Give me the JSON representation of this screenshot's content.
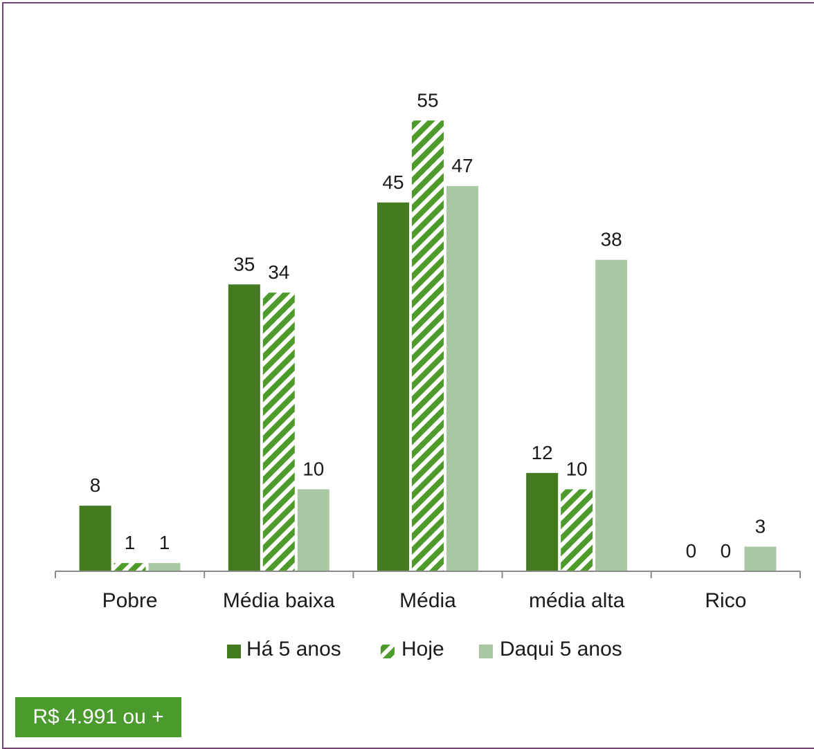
{
  "chart_data": {
    "type": "bar",
    "categories": [
      "Pobre",
      "Média baixa",
      "Média",
      "média alta",
      "Rico"
    ],
    "series": [
      {
        "name": "Há 5 anos",
        "values": [
          8,
          35,
          45,
          12,
          0
        ],
        "color": "#437a1f",
        "pattern": "solid"
      },
      {
        "name": "Hoje",
        "values": [
          1,
          34,
          55,
          10,
          0
        ],
        "color": "#4e9a2a",
        "pattern": "diagonal-stripes"
      },
      {
        "name": "Daqui 5 anos",
        "values": [
          1,
          10,
          47,
          38,
          3
        ],
        "color": "#a9c7a0",
        "pattern": "solid"
      }
    ],
    "ylim": [
      0,
      55
    ],
    "grid": false,
    "legend_position": "bottom",
    "data_labels": true
  },
  "badge": {
    "text": "R$ 4.991 ou +",
    "color": "#4b9a2d"
  }
}
